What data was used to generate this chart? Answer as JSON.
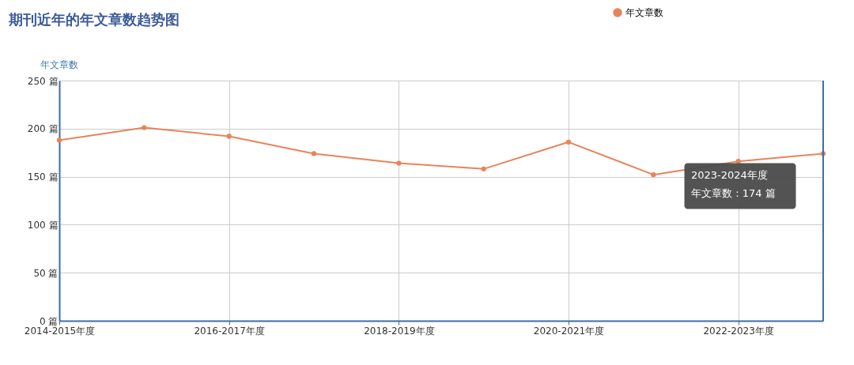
{
  "chart_data": {
    "type": "line",
    "title": "期刊近年的年文章数趋势图",
    "ylabel": "年文章数",
    "categories": [
      "2014-2015年度",
      null,
      "2016-2017年度",
      null,
      "2018-2019年度",
      null,
      "2020-2021年度",
      null,
      "2022-2023年度",
      null
    ],
    "series": [
      {
        "name": "年文章数",
        "color": "#e8845a",
        "values": [
          188,
          201,
          192,
          174,
          164,
          158,
          186,
          152,
          166,
          174
        ]
      }
    ],
    "ylim": [
      0,
      250
    ],
    "yticks": [
      {
        "value": 0,
        "label": "0 篇"
      },
      {
        "value": 50,
        "label": "50 篇"
      },
      {
        "value": 100,
        "label": "100 篇"
      },
      {
        "value": 150,
        "label": "150 篇"
      },
      {
        "value": 200,
        "label": "200 篇"
      },
      {
        "value": 250,
        "label": "250 篇"
      }
    ],
    "annotations": [
      "2023-2024年度",
      "年文章数 : 174 篇"
    ],
    "grid": true,
    "legend": "top right",
    "marker": "circle",
    "line_style": "solid"
  }
}
